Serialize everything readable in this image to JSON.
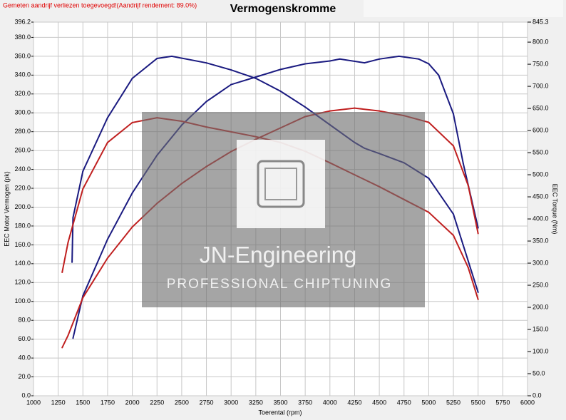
{
  "chart_data": {
    "type": "line",
    "title": "Vermogenskromme",
    "note": "Gemeten aandrijf verliezen toegevoegd!(Aandrijf rendement: 89.0%)",
    "xlabel": "Toerental (rpm)",
    "ylabel": "EEC Motor Vermogen (pk)",
    "y2label": "EEC Torque (Nm)",
    "annotations": [
      "JN-Engineering",
      "PROFESSIONAL CHIPTUNING"
    ],
    "grid": true,
    "xlim": [
      1000,
      6000
    ],
    "xticks": [
      1000,
      1250,
      1500,
      1750,
      2000,
      2250,
      2500,
      2750,
      3000,
      3250,
      3500,
      3750,
      4000,
      4250,
      4500,
      4750,
      5000,
      5250,
      5500,
      5750,
      6000
    ],
    "ylim": [
      0,
      396.2
    ],
    "yticks": [
      {
        "value": 0,
        "label": "0.0"
      },
      {
        "value": 20,
        "label": "20.0"
      },
      {
        "value": 40,
        "label": "40.0"
      },
      {
        "value": 60,
        "label": "60.0"
      },
      {
        "value": 80,
        "label": "80.0"
      },
      {
        "value": 100,
        "label": "100.0"
      },
      {
        "value": 120,
        "label": "120.0"
      },
      {
        "value": 140,
        "label": "140.0"
      },
      {
        "value": 160,
        "label": "160.0"
      },
      {
        "value": 180,
        "label": "180.0"
      },
      {
        "value": 200,
        "label": "200.0"
      },
      {
        "value": 220,
        "label": "220.0"
      },
      {
        "value": 240,
        "label": "240.0"
      },
      {
        "value": 260,
        "label": "260.0"
      },
      {
        "value": 280,
        "label": "280.0"
      },
      {
        "value": 300,
        "label": "300.0"
      },
      {
        "value": 320,
        "label": "320.0"
      },
      {
        "value": 340,
        "label": "340.0"
      },
      {
        "value": 360,
        "label": "360.0"
      },
      {
        "value": 380,
        "label": "380.0"
      },
      396.2
    ],
    "y2lim": [
      0,
      845.3
    ],
    "y2ticks": [
      {
        "value": 0,
        "label": "0.0"
      },
      {
        "value": 50,
        "label": "50.0"
      },
      {
        "value": 100,
        "label": "100.0"
      },
      {
        "value": 150,
        "label": "150.0"
      },
      {
        "value": 200,
        "label": "200.0"
      },
      {
        "value": 250,
        "label": "250.0"
      },
      {
        "value": 300,
        "label": "300.0"
      },
      {
        "value": 350,
        "label": "350.0"
      },
      {
        "value": 400,
        "label": "400.0"
      },
      {
        "value": 450,
        "label": "450.0"
      },
      {
        "value": 500,
        "label": "500.0"
      },
      {
        "value": 550,
        "label": "550.0"
      },
      {
        "value": 600,
        "label": "600.0"
      },
      {
        "value": 650,
        "label": "650.0"
      },
      {
        "value": 700,
        "label": "700.0"
      },
      {
        "value": 750,
        "label": "750.0"
      },
      {
        "value": 800,
        "label": "800.0"
      },
      845.3
    ],
    "series": [
      {
        "color": "#1a1a80",
        "axis": "y",
        "x": [
          1400,
          1500,
          1750,
          2000,
          2250,
          2500,
          2750,
          3000,
          3250,
          3500,
          3750,
          4000,
          4100,
          4350,
          4500,
          4700,
          4900,
          5000,
          5100,
          5250,
          5350,
          5500
        ],
        "values": [
          61,
          106,
          166,
          215,
          255,
          287,
          312,
          330,
          338,
          346,
          352,
          355,
          357,
          353,
          357,
          360,
          357,
          352,
          340,
          299,
          246,
          178
        ]
      },
      {
        "color": "#c02020",
        "axis": "y",
        "x": [
          1290,
          1350,
          1500,
          1750,
          2000,
          2250,
          2500,
          2750,
          3000,
          3250,
          3500,
          3750,
          4000,
          4250,
          4500,
          4750,
          5000,
          5250,
          5400,
          5500
        ],
        "values": [
          51,
          64,
          104,
          146,
          179,
          204,
          225,
          243,
          259,
          272,
          284,
          296,
          302,
          305,
          302,
          297,
          290,
          265,
          223,
          172
        ]
      },
      {
        "color": "#1a1a80",
        "axis": "y2",
        "x": [
          1390,
          1400,
          1500,
          1750,
          2000,
          2250,
          2400,
          2750,
          3000,
          3250,
          3500,
          3750,
          4000,
          4250,
          4350,
          4500,
          4750,
          5000,
          5250,
          5500
        ],
        "values": [
          302,
          403,
          508,
          629,
          718,
          763,
          768,
          753,
          737,
          718,
          689,
          653,
          613,
          573,
          560,
          548,
          527,
          492,
          411,
          234
        ]
      },
      {
        "color": "#c02020",
        "axis": "y2",
        "x": [
          1290,
          1350,
          1500,
          1750,
          2000,
          2250,
          2500,
          2750,
          3000,
          3250,
          3500,
          3750,
          4000,
          4250,
          4500,
          4750,
          5000,
          5250,
          5400,
          5500
        ],
        "values": [
          279,
          347,
          468,
          573,
          618,
          629,
          621,
          608,
          597,
          586,
          573,
          553,
          527,
          500,
          473,
          444,
          415,
          363,
          290,
          218
        ]
      }
    ]
  }
}
